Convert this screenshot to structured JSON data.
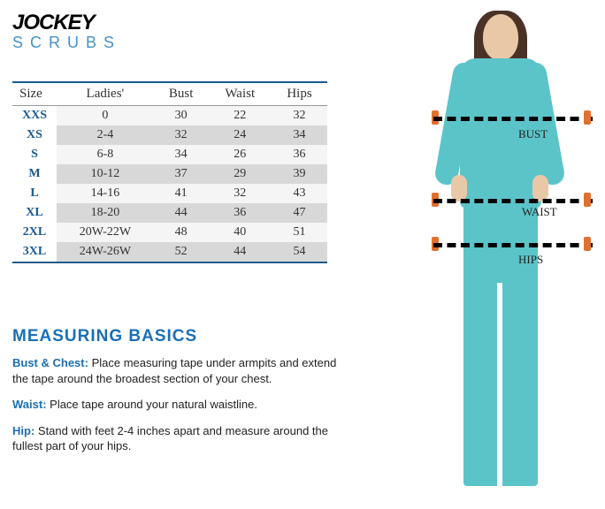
{
  "brand": {
    "name": "JOCKEY",
    "subline": "SCRUBS"
  },
  "table": {
    "columns": [
      "Size",
      "Ladies'",
      "Bust",
      "Waist",
      "Hips"
    ],
    "rows": [
      [
        "XXS",
        "0",
        "30",
        "22",
        "32"
      ],
      [
        "XS",
        "2-4",
        "32",
        "24",
        "34"
      ],
      [
        "S",
        "6-8",
        "34",
        "26",
        "36"
      ],
      [
        "M",
        "10-12",
        "37",
        "29",
        "39"
      ],
      [
        "L",
        "14-16",
        "41",
        "32",
        "43"
      ],
      [
        "XL",
        "18-20",
        "44",
        "36",
        "47"
      ],
      [
        "2XL",
        "20W-22W",
        "48",
        "40",
        "51"
      ],
      [
        "3XL",
        "24W-26W",
        "52",
        "44",
        "54"
      ]
    ],
    "header_color": "#333333",
    "size_col_color": "#1a5a8e",
    "row_alt_bg": "#d8d8d8",
    "row_bg": "#f5f5f5",
    "border_color": "#1a5a8e"
  },
  "measuring": {
    "title": "MEASURING BASICS",
    "items": [
      {
        "label": "Bust & Chest:",
        "text": " Place measuring tape under armpits and extend the tape around the broadest section of your chest."
      },
      {
        "label": "Waist:",
        "text": " Place tape around your natural waistline."
      },
      {
        "label": "Hip:",
        "text": " Stand with feet 2-4 inches apart and measure around the fullest part of your hips."
      }
    ],
    "title_color": "#1a6fb5",
    "label_color": "#1a6fb5",
    "text_color": "#222222",
    "title_fontsize": 19,
    "body_fontsize": 13
  },
  "figure": {
    "labels": {
      "bust": "BUST",
      "waist": "WAIST",
      "hips": "HIPS"
    },
    "outfit_color": "#5bc4c9",
    "skin_color": "#e9c8a8",
    "hair_color": "#4a3226",
    "dash_color": "#000000",
    "marker_color": "#e07030"
  },
  "background_color": "#ffffff"
}
